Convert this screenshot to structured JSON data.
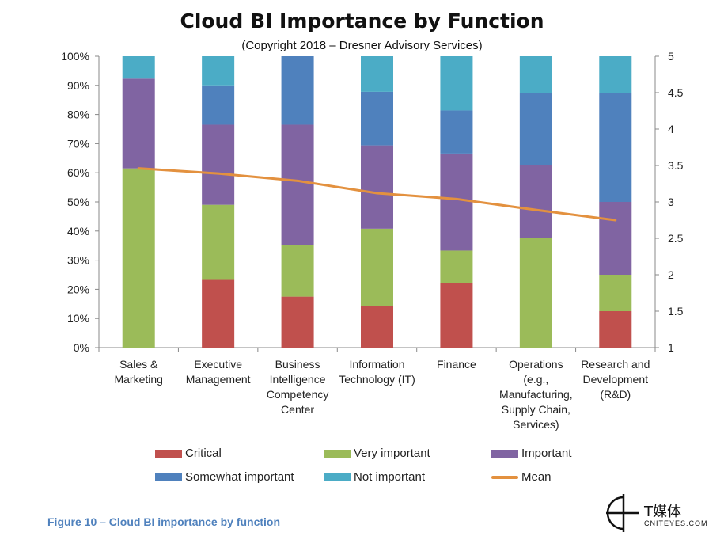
{
  "chart_data": {
    "type": "bar",
    "stacked": true,
    "percent_stacked": true,
    "title": "Cloud BI Importance by Function",
    "subtitle": "(Copyright 2018 – Dresner Advisory Services)",
    "categories": [
      [
        "Sales &",
        "Marketing"
      ],
      [
        "Executive",
        "Management"
      ],
      [
        "Business",
        "Intelligence",
        "Competency",
        "Center"
      ],
      [
        "Information",
        "Technology (IT)"
      ],
      [
        "Finance"
      ],
      [
        "Operations",
        "(e.g.,",
        "Manufacturing,",
        "Supply Chain,",
        "Services)"
      ],
      [
        "Research and",
        "Development",
        "(R&D)"
      ]
    ],
    "series": [
      {
        "name": "Critical",
        "color": "#c0504d",
        "values": [
          0,
          23.5,
          17.5,
          14.3,
          22.2,
          0,
          12.5
        ]
      },
      {
        "name": "Very important",
        "color": "#9bbb59",
        "values": [
          61.5,
          25.5,
          17.8,
          26.5,
          11.1,
          37.5,
          12.5
        ]
      },
      {
        "name": "Important",
        "color": "#8064a2",
        "values": [
          30.8,
          27.5,
          41.2,
          28.6,
          33.3,
          25.0,
          25.0
        ]
      },
      {
        "name": "Somewhat important",
        "color": "#4f81bd",
        "values": [
          0,
          13.5,
          23.5,
          18.4,
          14.8,
          25.0,
          37.5
        ]
      },
      {
        "name": "Not important",
        "color": "#4bacc6",
        "values": [
          7.7,
          10.0,
          0,
          12.2,
          18.6,
          12.5,
          12.5
        ]
      }
    ],
    "mean": {
      "name": "Mean",
      "color": "#e3913f",
      "values": [
        3.46,
        3.39,
        3.29,
        3.12,
        3.04,
        2.89,
        2.75
      ]
    },
    "y_left": {
      "min": 0,
      "max": 100,
      "step": 10,
      "suffix": "%"
    },
    "y_right": {
      "min": 1,
      "max": 5,
      "step": 0.5
    },
    "y_right_ticks": [
      "1",
      "1.5",
      "2",
      "2.5",
      "3",
      "3.5",
      "4",
      "4.5",
      "5"
    ],
    "grid": false,
    "legend_position": "bottom"
  },
  "caption": "Figure 10 – Cloud BI importance by function",
  "logo": {
    "name": "T媒体",
    "sub": "CNITEYES.COM"
  }
}
